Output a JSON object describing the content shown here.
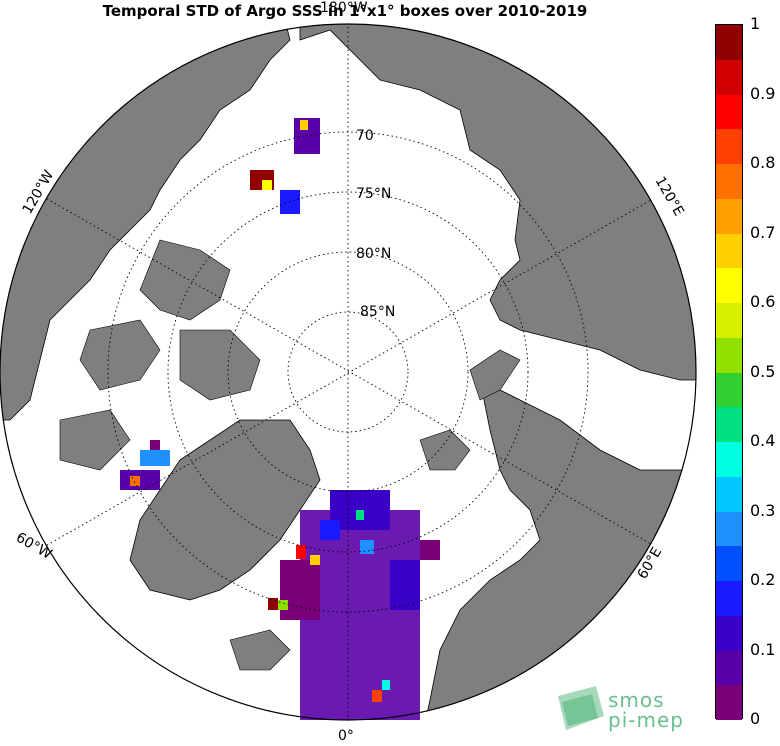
{
  "title": "Temporal STD of Argo SSS in 1°x1° boxes over 2010-2019",
  "map": {
    "projection": "north-polar-stereographic",
    "lat_labels": [
      "70",
      "75°N",
      "80°N",
      "85°N"
    ],
    "lon_labels": {
      "top": "180°W",
      "left": "120°W",
      "right": "120°E",
      "lower_left": "60°W",
      "lower_right": "60°E",
      "bottom": "0°"
    },
    "land_color": "#7f7f7f",
    "ocean_color": "#ffffff"
  },
  "colorbar": {
    "min": 0,
    "max": 1,
    "ticks": [
      "0",
      "0.1",
      "0.2",
      "0.3",
      "0.4",
      "0.5",
      "0.6",
      "0.7",
      "0.8",
      "0.9",
      "1"
    ],
    "colors": [
      "#7a007a",
      "#5a00a8",
      "#3a00c8",
      "#1a1aff",
      "#0050ff",
      "#1e90ff",
      "#00c8ff",
      "#00ffe0",
      "#00e080",
      "#30d030",
      "#90e000",
      "#d8f000",
      "#ffff00",
      "#ffd000",
      "#ffa000",
      "#ff7000",
      "#ff4000",
      "#ff0000",
      "#d00000",
      "#900000"
    ]
  },
  "logo": {
    "line1": "smos",
    "line2": "pi-mep"
  }
}
